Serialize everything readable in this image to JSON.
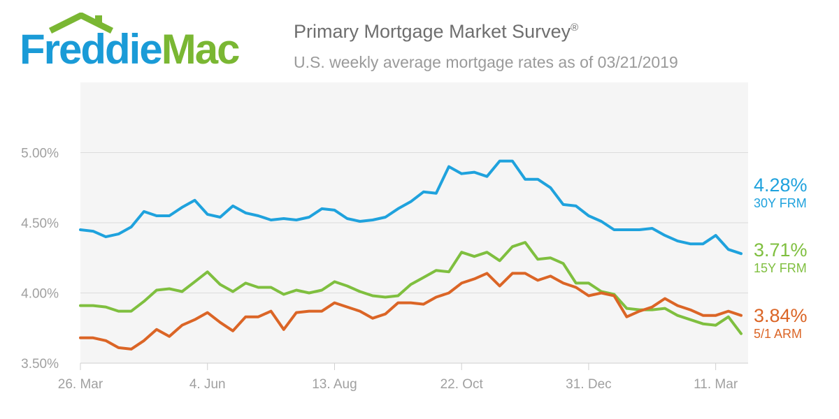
{
  "logo": {
    "part1": "Freddie",
    "part2": "Mac"
  },
  "title": "Primary Mortgage Market Survey",
  "title_mark": "®",
  "subtitle": "U.S. weekly average mortgage rates as of 03/21/2019",
  "colors": {
    "s30": "#1fa2dd",
    "s15": "#7fbf3f",
    "arm": "#db6526",
    "grid": "#dcdcdc",
    "plot_bg": "#f5f5f5",
    "axis_text": "#a0a0a0"
  },
  "chart_data": {
    "type": "line",
    "title": "Primary Mortgage Market Survey",
    "subtitle": "U.S. weekly average mortgage rates as of 03/21/2019",
    "x_ticks": [
      "26. Mar",
      "4. Jun",
      "13. Aug",
      "22. Oct",
      "31. Dec",
      "11. Mar"
    ],
    "y_ticks": [
      "3.50%",
      "4.00%",
      "4.50%",
      "5.00%"
    ],
    "ylim": [
      3.5,
      5.5
    ],
    "grid": true,
    "x_dates": [
      "2018-03-22",
      "2018-03-29",
      "2018-04-05",
      "2018-04-12",
      "2018-04-19",
      "2018-04-26",
      "2018-05-03",
      "2018-05-10",
      "2018-05-17",
      "2018-05-24",
      "2018-05-31",
      "2018-06-07",
      "2018-06-14",
      "2018-06-21",
      "2018-06-28",
      "2018-07-05",
      "2018-07-12",
      "2018-07-19",
      "2018-07-26",
      "2018-08-02",
      "2018-08-09",
      "2018-08-16",
      "2018-08-23",
      "2018-08-30",
      "2018-09-06",
      "2018-09-13",
      "2018-09-20",
      "2018-09-27",
      "2018-10-04",
      "2018-10-11",
      "2018-10-18",
      "2018-10-25",
      "2018-11-01",
      "2018-11-08",
      "2018-11-15",
      "2018-11-21",
      "2018-11-29",
      "2018-12-06",
      "2018-12-13",
      "2018-12-20",
      "2018-12-27",
      "2019-01-03",
      "2019-01-10",
      "2019-01-17",
      "2019-01-24",
      "2019-01-31",
      "2019-02-07",
      "2019-02-14",
      "2019-02-21",
      "2019-02-28",
      "2019-03-07",
      "2019-03-14",
      "2019-03-21"
    ],
    "series": [
      {
        "name": "30Y FRM",
        "end_label": "4.28%",
        "values": [
          4.45,
          4.44,
          4.4,
          4.42,
          4.47,
          4.58,
          4.55,
          4.55,
          4.61,
          4.66,
          4.56,
          4.54,
          4.62,
          4.57,
          4.55,
          4.52,
          4.53,
          4.52,
          4.54,
          4.6,
          4.59,
          4.53,
          4.51,
          4.52,
          4.54,
          4.6,
          4.65,
          4.72,
          4.71,
          4.9,
          4.85,
          4.86,
          4.83,
          4.94,
          4.94,
          4.81,
          4.81,
          4.75,
          4.63,
          4.62,
          4.55,
          4.51,
          4.45,
          4.45,
          4.45,
          4.46,
          4.41,
          4.37,
          4.35,
          4.35,
          4.41,
          4.31,
          4.28
        ]
      },
      {
        "name": "15Y FRM",
        "end_label": "3.71%",
        "values": [
          3.91,
          3.91,
          3.9,
          3.87,
          3.87,
          3.94,
          4.02,
          4.03,
          4.01,
          4.08,
          4.15,
          4.06,
          4.01,
          4.07,
          4.04,
          4.04,
          3.99,
          4.02,
          4.0,
          4.02,
          4.08,
          4.05,
          4.01,
          3.98,
          3.97,
          3.98,
          4.06,
          4.11,
          4.16,
          4.15,
          4.29,
          4.26,
          4.29,
          4.23,
          4.33,
          4.36,
          4.24,
          4.25,
          4.21,
          4.07,
          4.07,
          4.01,
          3.99,
          3.89,
          3.88,
          3.88,
          3.89,
          3.84,
          3.81,
          3.78,
          3.77,
          3.83,
          3.71
        ]
      },
      {
        "name": "5/1 ARM",
        "end_label": "3.84%",
        "values": [
          3.68,
          3.68,
          3.66,
          3.61,
          3.6,
          3.66,
          3.74,
          3.69,
          3.77,
          3.81,
          3.86,
          3.79,
          3.73,
          3.83,
          3.83,
          3.87,
          3.74,
          3.86,
          3.87,
          3.87,
          3.93,
          3.9,
          3.87,
          3.82,
          3.85,
          3.93,
          3.93,
          3.92,
          3.97,
          4.0,
          4.07,
          4.1,
          4.14,
          4.05,
          4.14,
          4.14,
          4.09,
          4.12,
          4.07,
          4.04,
          3.98,
          4.0,
          3.98,
          3.83,
          3.87,
          3.9,
          3.96,
          3.91,
          3.88,
          3.84,
          3.84,
          3.87,
          3.84
        ]
      }
    ]
  }
}
